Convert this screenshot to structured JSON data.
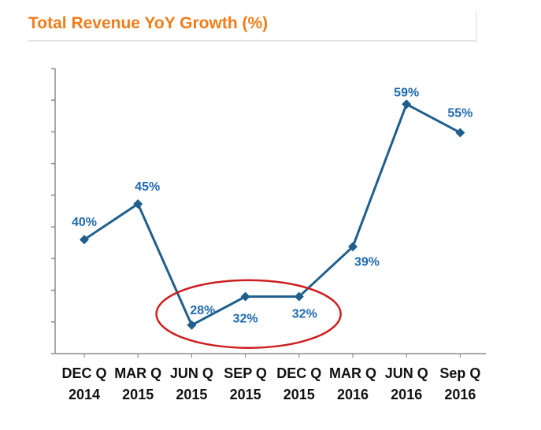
{
  "chart_data": {
    "type": "line",
    "title": "Total Revenue YoY Growth  (%)",
    "xlabel": "",
    "ylabel": "",
    "categories": [
      [
        "DEC Q",
        "2014"
      ],
      [
        "MAR Q",
        "2015"
      ],
      [
        "JUN Q",
        "2015"
      ],
      [
        "SEP Q",
        "2015"
      ],
      [
        "DEC Q",
        "2015"
      ],
      [
        "MAR Q",
        "2016"
      ],
      [
        "JUN Q",
        "2016"
      ],
      [
        "Sep Q",
        "2016"
      ]
    ],
    "series": [
      {
        "values": [
          40,
          45,
          28,
          32,
          32,
          39,
          59,
          55
        ],
        "labels": [
          "40%",
          "45%",
          "28%",
          "32%",
          "32%",
          "39%",
          "59%",
          "55%"
        ],
        "color": "#1f5f8b",
        "label_color": "#1f6ab0",
        "marker": "diamond"
      }
    ],
    "ylim": [
      24,
      64
    ],
    "y_tick_count": 9,
    "grid": false,
    "legend": "none",
    "annotation": {
      "type": "ellipse",
      "color": "#cc1f1f",
      "highlights": [
        "JUN Q 2015",
        "SEP Q 2015",
        "DEC Q 2015"
      ]
    }
  }
}
